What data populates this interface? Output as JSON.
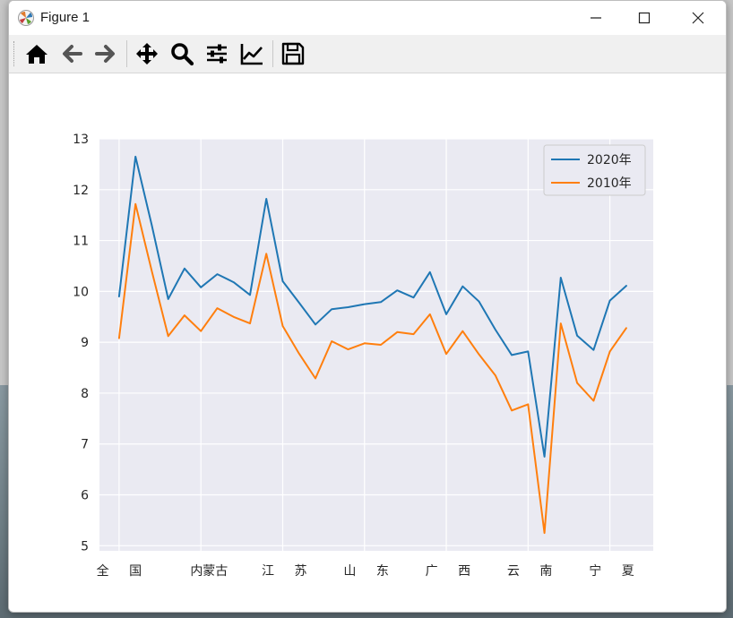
{
  "window": {
    "title": "Figure 1"
  },
  "toolbar": {
    "buttons": [
      {
        "name": "home-button",
        "icon": "home-icon"
      },
      {
        "name": "back-button",
        "icon": "arrow-left-icon"
      },
      {
        "name": "forward-button",
        "icon": "arrow-right-icon"
      },
      {
        "name": "pan-button",
        "icon": "move-icon"
      },
      {
        "name": "zoom-button",
        "icon": "magnifier-icon"
      },
      {
        "name": "configure-subplots-button",
        "icon": "sliders-icon"
      },
      {
        "name": "edit-axes-button",
        "icon": "chart-line-icon"
      },
      {
        "name": "save-button",
        "icon": "floppy-icon"
      }
    ]
  },
  "chart_data": {
    "type": "line",
    "title": "",
    "xlabel": "",
    "ylabel": "",
    "ylim": [
      4.9,
      13
    ],
    "yticks": [
      5,
      6,
      7,
      8,
      9,
      10,
      11,
      12,
      13
    ],
    "xtick_labels": [
      "全",
      "国",
      "内蒙古",
      "江",
      "苏",
      "山",
      "东",
      "广",
      "西",
      "云",
      "南",
      "宁",
      "夏"
    ],
    "grid": true,
    "legend_position": "top-right",
    "x": [
      0,
      1,
      2,
      3,
      4,
      5,
      6,
      7,
      8,
      9,
      10,
      11,
      12,
      13,
      14,
      15,
      16,
      17,
      18,
      19,
      20,
      21,
      22,
      23,
      24,
      25,
      26,
      27,
      28,
      29,
      30,
      31
    ],
    "series": [
      {
        "name": "2020年",
        "color": "#1f77b4",
        "values": [
          9.9,
          12.65,
          11.3,
          9.85,
          10.45,
          10.08,
          10.34,
          10.18,
          9.93,
          11.82,
          10.2,
          9.78,
          9.35,
          9.65,
          9.69,
          9.75,
          9.79,
          10.02,
          9.88,
          10.38,
          9.55,
          10.1,
          9.8,
          9.25,
          8.75,
          8.82,
          6.75,
          10.27,
          9.13,
          8.85,
          9.82,
          10.11
        ]
      },
      {
        "name": "2010年",
        "color": "#ff7f0e",
        "values": [
          9.08,
          11.72,
          10.4,
          9.12,
          9.53,
          9.22,
          9.67,
          9.5,
          9.37,
          10.74,
          9.32,
          8.78,
          8.29,
          9.02,
          8.86,
          8.98,
          8.95,
          9.2,
          9.16,
          9.55,
          8.77,
          9.22,
          8.76,
          8.35,
          7.66,
          7.78,
          5.25,
          9.37,
          8.2,
          7.85,
          8.82,
          9.28
        ]
      }
    ]
  }
}
